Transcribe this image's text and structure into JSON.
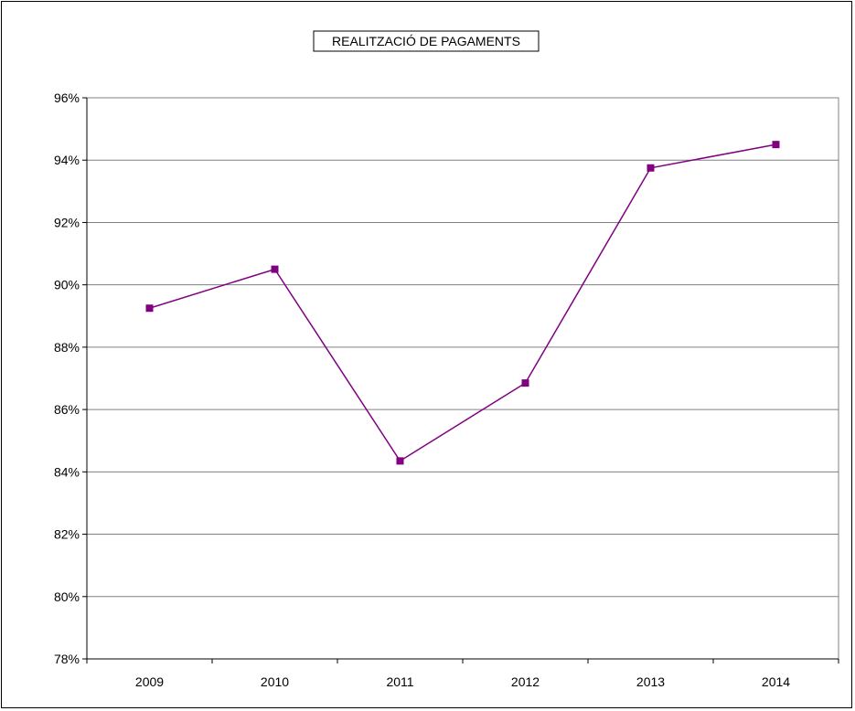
{
  "chart_data": {
    "type": "line",
    "title": "REALITZACIÓ DE PAGAMENTS",
    "xlabel": "",
    "ylabel": "",
    "categories": [
      "2009",
      "2010",
      "2011",
      "2012",
      "2013",
      "2014"
    ],
    "series": [
      {
        "values": [
          89.25,
          90.5,
          84.35,
          86.85,
          93.75,
          94.5
        ],
        "color": "#800080"
      }
    ],
    "ylim": [
      78,
      96
    ],
    "ytick_step": 2,
    "ytick_labels": [
      "78%",
      "80%",
      "82%",
      "84%",
      "86%",
      "88%",
      "90%",
      "92%",
      "94%",
      "96%"
    ],
    "grid": true,
    "legend": "none"
  }
}
